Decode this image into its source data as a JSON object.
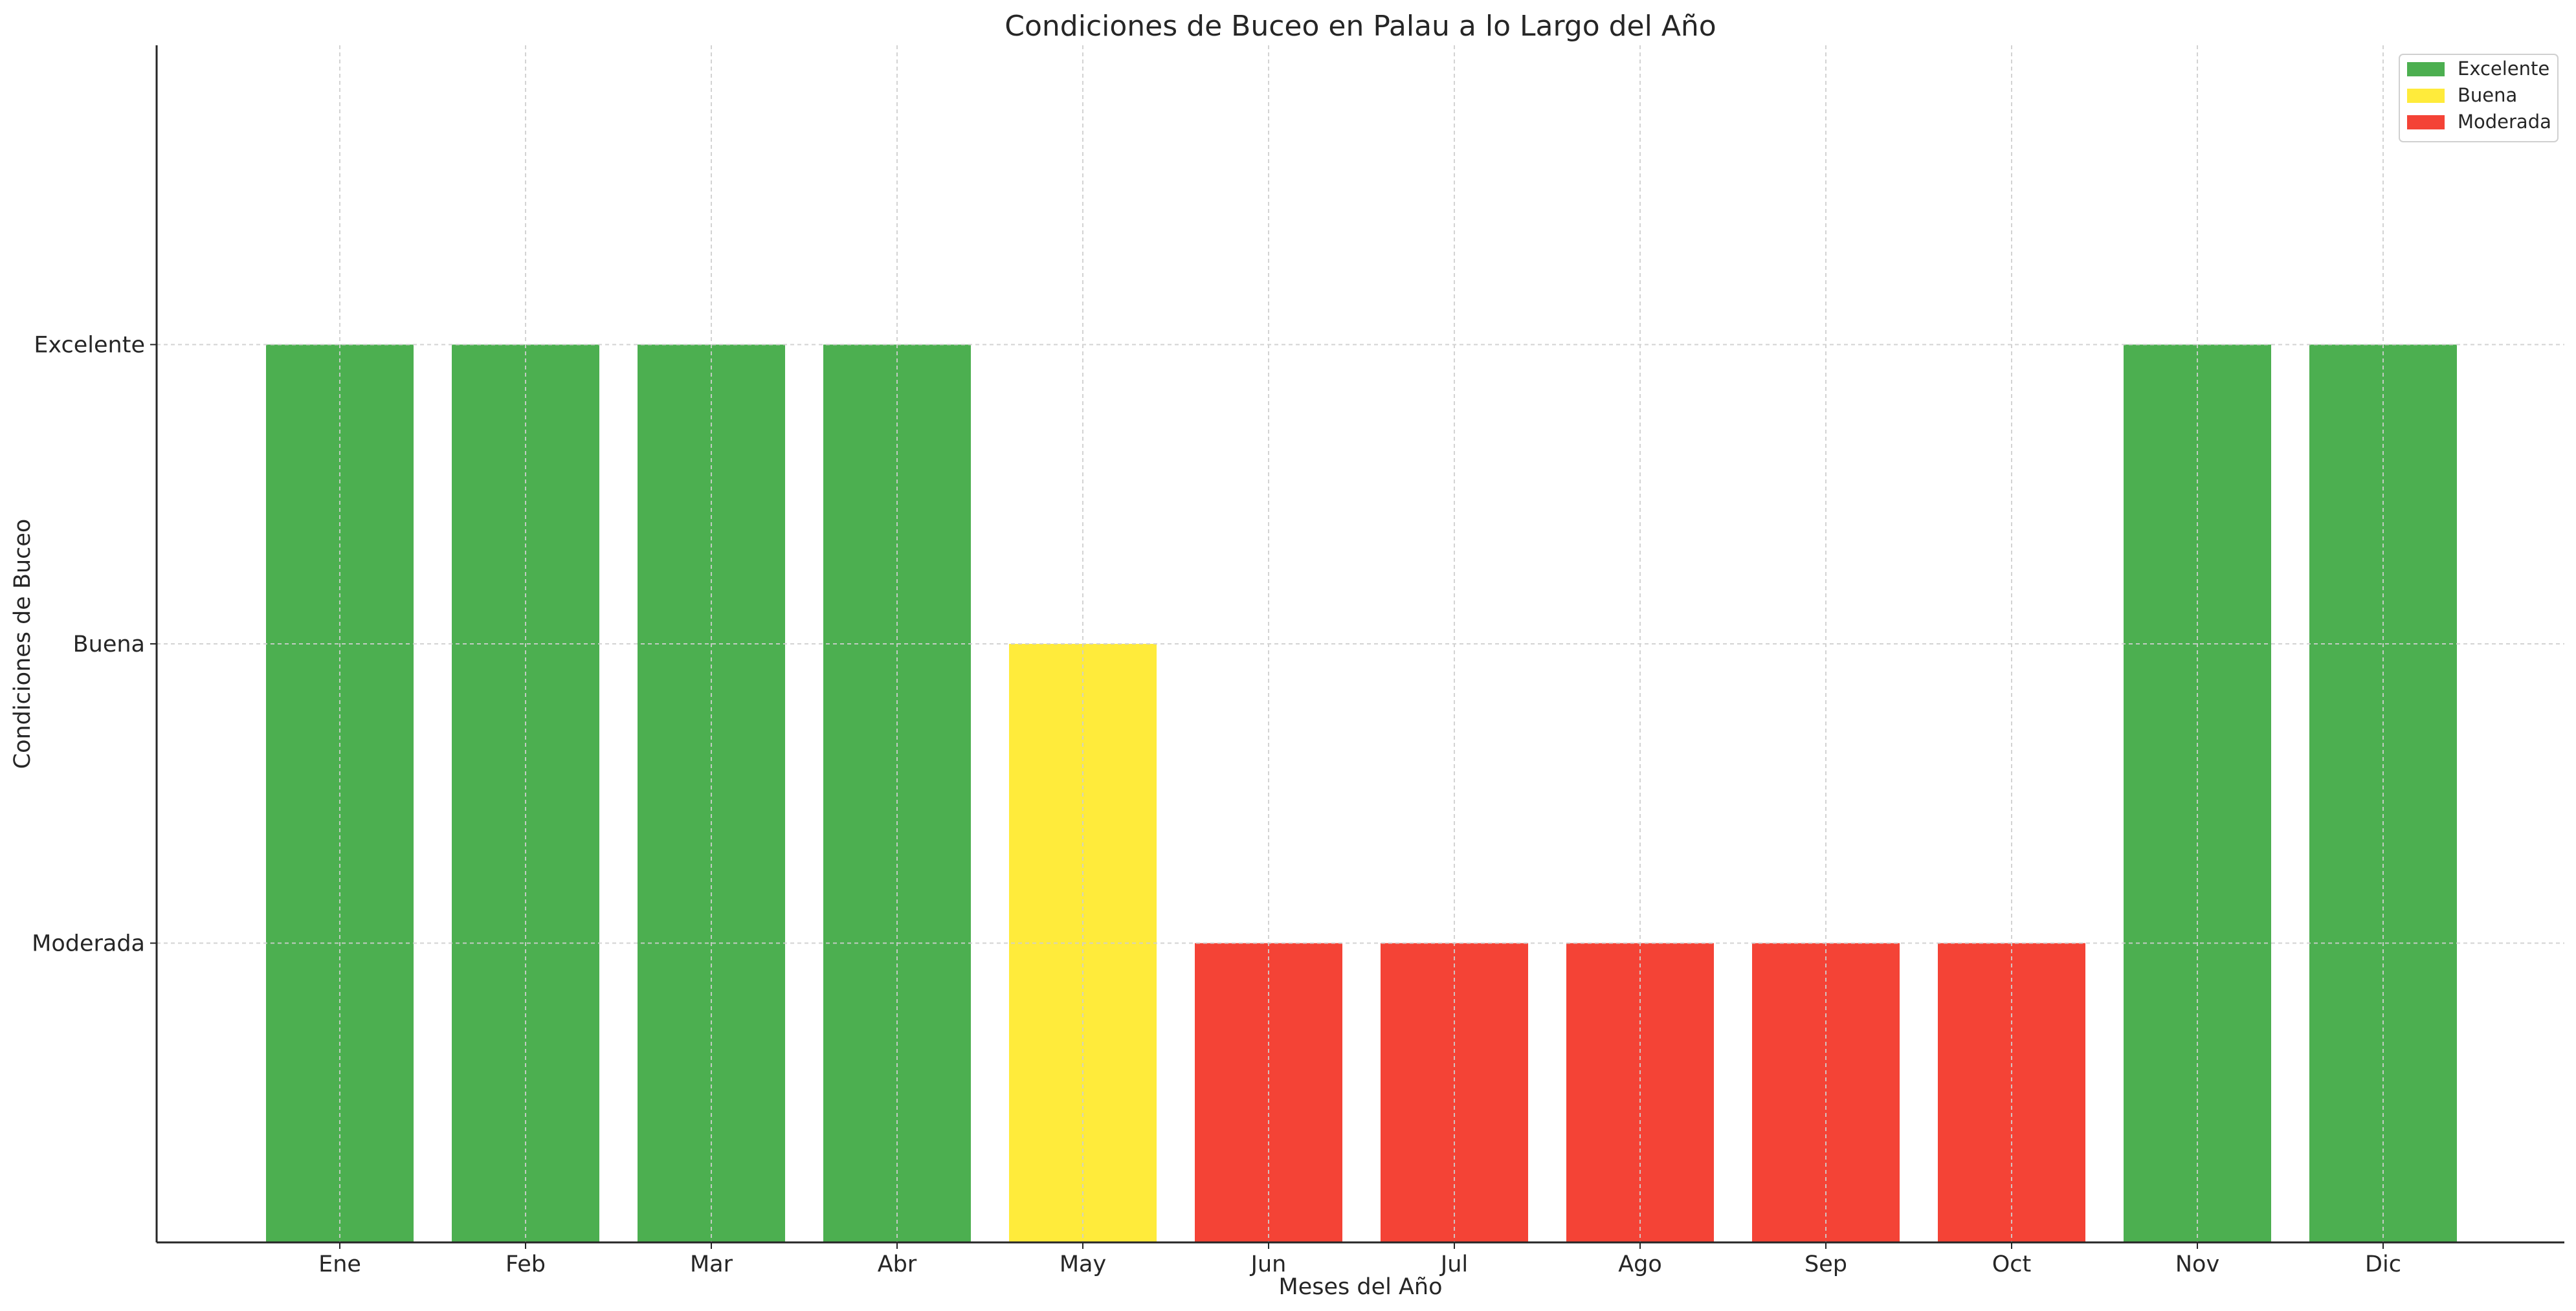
{
  "chart_data": {
    "type": "bar",
    "title": "Condiciones de Buceo en Palau a lo Largo del Año",
    "xlabel": "Meses del Año",
    "ylabel": "Condiciones de Buceo",
    "categories": [
      "Ene",
      "Feb",
      "Mar",
      "Abr",
      "May",
      "Jun",
      "Jul",
      "Ago",
      "Sep",
      "Oct",
      "Nov",
      "Dic"
    ],
    "levels": [
      "Moderada",
      "Buena",
      "Excelente"
    ],
    "values": [
      3,
      3,
      3,
      3,
      2,
      1,
      1,
      1,
      1,
      1,
      3,
      3
    ],
    "ylim": [
      0,
      4
    ],
    "yticks": [
      {
        "value": 1,
        "label": "Moderada"
      },
      {
        "value": 2,
        "label": "Buena"
      },
      {
        "value": 3,
        "label": "Excelente"
      }
    ],
    "grid": true,
    "legend": {
      "placement": "top-right",
      "entries": [
        {
          "label": "Excelente",
          "color": "#4caf50"
        },
        {
          "label": "Buena",
          "color": "#ffeb3b"
        },
        {
          "label": "Moderada",
          "color": "#f44336"
        }
      ]
    },
    "colors": {
      "3": "#4caf50",
      "2": "#ffeb3b",
      "1": "#f44336"
    }
  }
}
